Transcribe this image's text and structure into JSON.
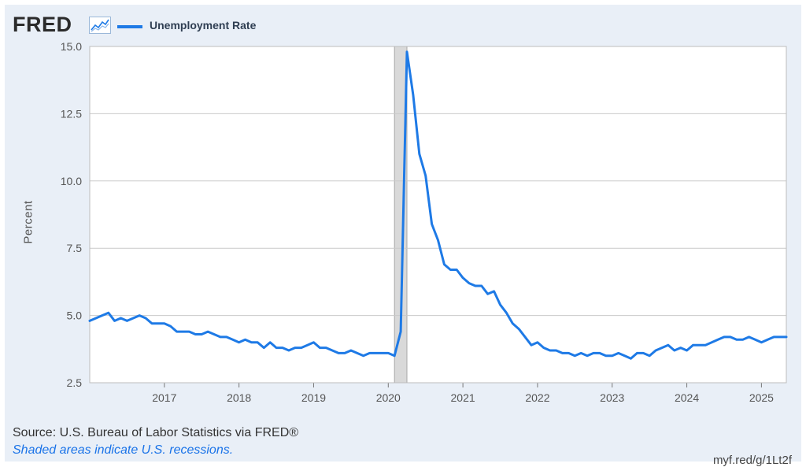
{
  "header": {
    "logo_text": "FRED",
    "logo_icon": "line-graph-icon",
    "legend_label": "Unemployment Rate"
  },
  "footer": {
    "source": "Source: U.S. Bureau of Labor Statistics via FRED®",
    "recession_note": "Shaded areas indicate U.S. recessions.",
    "short_url": "myf.red/g/1Lt2f"
  },
  "colors": {
    "series": "#1e7ae6",
    "recession": "#d9d9d9",
    "background": "#e9eff7",
    "grid": "#c9c9c9"
  },
  "chart_data": {
    "type": "line",
    "ylabel": "Percent",
    "xlabel": "",
    "ylim": [
      2.5,
      15.0
    ],
    "yticks": [
      {
        "value": 2.5,
        "label": "2.5"
      },
      {
        "value": 5.0,
        "label": "5.0"
      },
      {
        "value": 7.5,
        "label": "7.5"
      },
      {
        "value": 10.0,
        "label": "10.0"
      },
      {
        "value": 12.5,
        "label": "12.5"
      },
      {
        "value": 15.0,
        "label": "15.0"
      }
    ],
    "xlim": [
      "2016-01",
      "2025-05"
    ],
    "xticks": [
      "2017",
      "2018",
      "2019",
      "2020",
      "2021",
      "2022",
      "2023",
      "2024",
      "2025"
    ],
    "grid": true,
    "legend_position": "top-left",
    "recessions": [
      {
        "start": "2020-02",
        "end": "2020-04"
      }
    ],
    "series": [
      {
        "name": "Unemployment Rate",
        "start": "2016-01",
        "frequency": "monthly",
        "values": [
          4.8,
          4.9,
          5.0,
          5.1,
          4.8,
          4.9,
          4.8,
          4.9,
          5.0,
          4.9,
          4.7,
          4.7,
          4.7,
          4.6,
          4.4,
          4.4,
          4.4,
          4.3,
          4.3,
          4.4,
          4.3,
          4.2,
          4.2,
          4.1,
          4.0,
          4.1,
          4.0,
          4.0,
          3.8,
          4.0,
          3.8,
          3.8,
          3.7,
          3.8,
          3.8,
          3.9,
          4.0,
          3.8,
          3.8,
          3.7,
          3.6,
          3.6,
          3.7,
          3.6,
          3.5,
          3.6,
          3.6,
          3.6,
          3.6,
          3.5,
          4.4,
          14.8,
          13.2,
          11.0,
          10.2,
          8.4,
          7.8,
          6.9,
          6.7,
          6.7,
          6.4,
          6.2,
          6.1,
          6.1,
          5.8,
          5.9,
          5.4,
          5.1,
          4.7,
          4.5,
          4.2,
          3.9,
          4.0,
          3.8,
          3.7,
          3.7,
          3.6,
          3.6,
          3.5,
          3.6,
          3.5,
          3.6,
          3.6,
          3.5,
          3.5,
          3.6,
          3.5,
          3.4,
          3.6,
          3.6,
          3.5,
          3.7,
          3.8,
          3.9,
          3.7,
          3.8,
          3.7,
          3.9,
          3.9,
          3.9,
          4.0,
          4.1,
          4.2,
          4.2,
          4.1,
          4.1,
          4.2,
          4.1,
          4.0,
          4.1,
          4.2,
          4.2,
          4.2
        ]
      }
    ]
  }
}
